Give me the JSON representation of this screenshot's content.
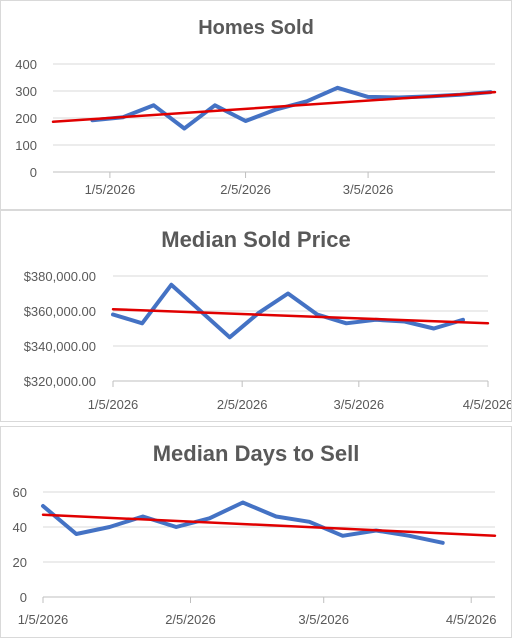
{
  "colors": {
    "series": "#4472c4",
    "trend": "#e00000",
    "text": "#595959",
    "grid": "#d9d9d9"
  },
  "chart_data": [
    {
      "type": "line",
      "title": "Homes Sold",
      "xlabel": "",
      "ylabel": "",
      "grid": true,
      "ylim": [
        0,
        400
      ],
      "y_ticks": [
        0,
        100,
        200,
        300,
        400
      ],
      "y_tick_labels": [
        "0",
        "100",
        "200",
        "300",
        "400"
      ],
      "x_tick_labels": [
        "1/5/2026",
        "2/5/2026",
        "3/5/2026"
      ],
      "x": [
        "1/1/2026",
        "1/8/2026",
        "1/15/2026",
        "1/22/2026",
        "1/29/2026",
        "2/5/2026",
        "2/12/2026",
        "2/19/2026",
        "2/26/2026",
        "3/5/2026",
        "3/12/2026",
        "3/19/2026",
        "3/26/2026",
        "4/2/2026"
      ],
      "values": [
        192,
        203,
        247,
        161,
        247,
        189,
        232,
        262,
        312,
        278,
        276,
        280,
        286,
        296
      ],
      "trendline": {
        "type": "linear",
        "start": 186,
        "end": 296
      }
    },
    {
      "type": "line",
      "title": "Median Sold Price",
      "xlabel": "",
      "ylabel": "",
      "grid": true,
      "ylim": [
        320000,
        380000
      ],
      "y_ticks": [
        320000,
        340000,
        360000,
        380000
      ],
      "y_tick_labels": [
        "$320,000.00",
        "$340,000.00",
        "$360,000.00",
        "$380,000.00"
      ],
      "x_tick_labels": [
        "1/5/2026",
        "2/5/2026",
        "3/5/2026",
        "4/5/2026"
      ],
      "x": [
        "1/5/2026",
        "1/12/2026",
        "1/19/2026",
        "1/26/2026",
        "2/2/2026",
        "2/9/2026",
        "2/16/2026",
        "2/23/2026",
        "3/2/2026",
        "3/9/2026",
        "3/16/2026",
        "3/23/2026",
        "3/30/2026"
      ],
      "values": [
        358000,
        353000,
        375000,
        360000,
        345000,
        359000,
        370000,
        358000,
        353000,
        355000,
        354000,
        350000,
        355000
      ],
      "trendline": {
        "type": "linear",
        "start": 361000,
        "end": 353000
      }
    },
    {
      "type": "line",
      "title": "Median Days to Sell",
      "xlabel": "",
      "ylabel": "",
      "grid": true,
      "ylim": [
        0,
        60
      ],
      "y_ticks": [
        0,
        20,
        40,
        60
      ],
      "y_tick_labels": [
        "0",
        "20",
        "40",
        "60"
      ],
      "x_tick_labels": [
        "1/5/2026",
        "2/5/2026",
        "3/5/2026",
        "4/5/2026"
      ],
      "x": [
        "1/5/2026",
        "1/12/2026",
        "1/19/2026",
        "1/26/2026",
        "2/2/2026",
        "2/9/2026",
        "2/16/2026",
        "2/23/2026",
        "3/2/2026",
        "3/9/2026",
        "3/16/2026",
        "3/23/2026",
        "3/30/2026"
      ],
      "values": [
        52,
        36,
        40,
        46,
        40,
        45,
        54,
        46,
        43,
        35,
        38,
        35,
        31
      ],
      "trendline": {
        "type": "linear",
        "start": 47,
        "end": 35
      }
    }
  ]
}
